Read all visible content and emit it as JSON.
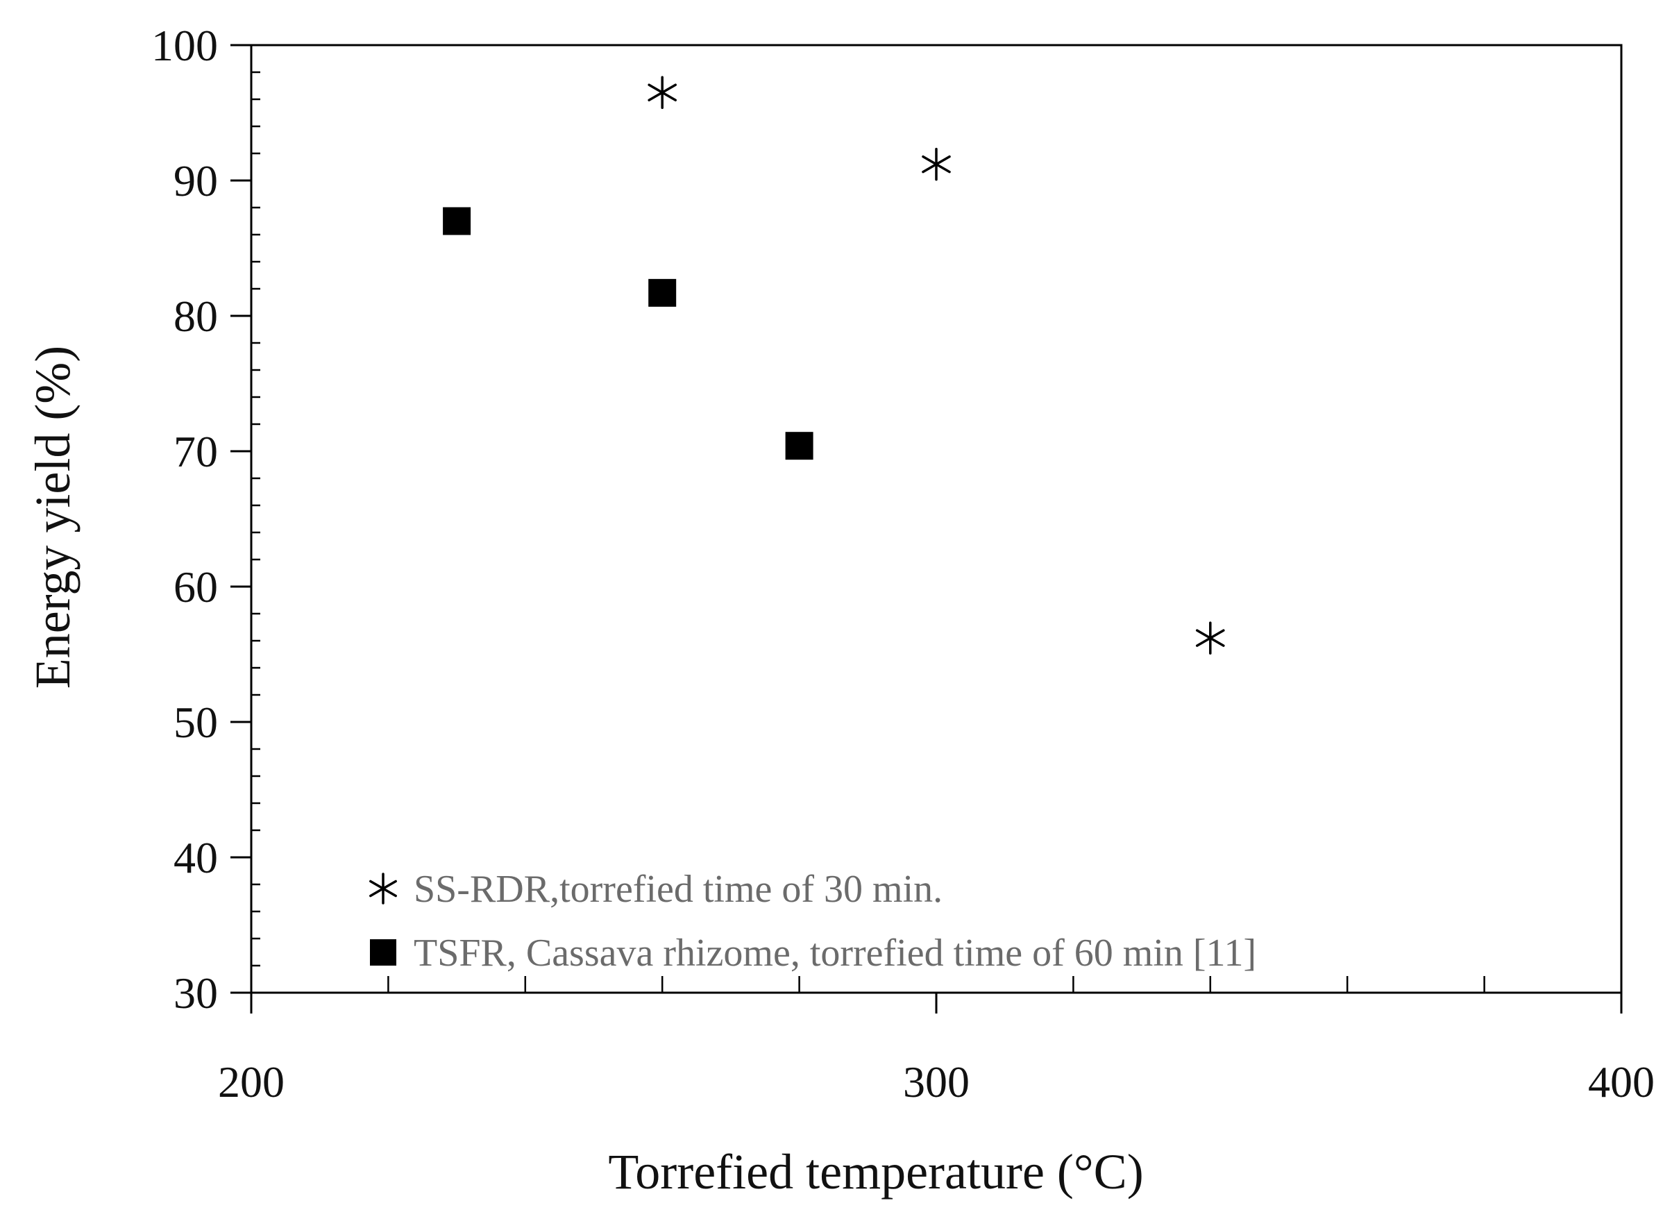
{
  "chart_data": {
    "type": "scatter",
    "title": "",
    "xlabel": "Torrefied temperature (°C)",
    "ylabel": "Energy yield (%)",
    "xlim": [
      200,
      400
    ],
    "ylim": [
      30,
      100
    ],
    "x_major_ticks": [
      200,
      300,
      400
    ],
    "x_tick_labels": [
      "200",
      "300",
      "400"
    ],
    "x_minor_step": 20,
    "y_major_ticks": [
      30,
      40,
      50,
      60,
      70,
      80,
      90,
      100
    ],
    "y_tick_labels": [
      "30",
      "40",
      "50",
      "60",
      "70",
      "80",
      "90",
      "100"
    ],
    "y_minor_step": 2,
    "grid": false,
    "legend_position": "bottom-left",
    "series": [
      {
        "name": "SS-RDR,torrefied time of 30 min.",
        "marker": "asterisk",
        "color": "#000000",
        "points": [
          {
            "x": 260,
            "y": 96.5
          },
          {
            "x": 300,
            "y": 91.2
          },
          {
            "x": 340,
            "y": 56.2
          }
        ]
      },
      {
        "name": "TSFR, Cassava rhizome, torrefied time of 60 min [11]",
        "marker": "square",
        "color": "#000000",
        "points": [
          {
            "x": 230,
            "y": 87.0
          },
          {
            "x": 260,
            "y": 81.7
          },
          {
            "x": 280,
            "y": 70.4
          }
        ]
      }
    ]
  }
}
